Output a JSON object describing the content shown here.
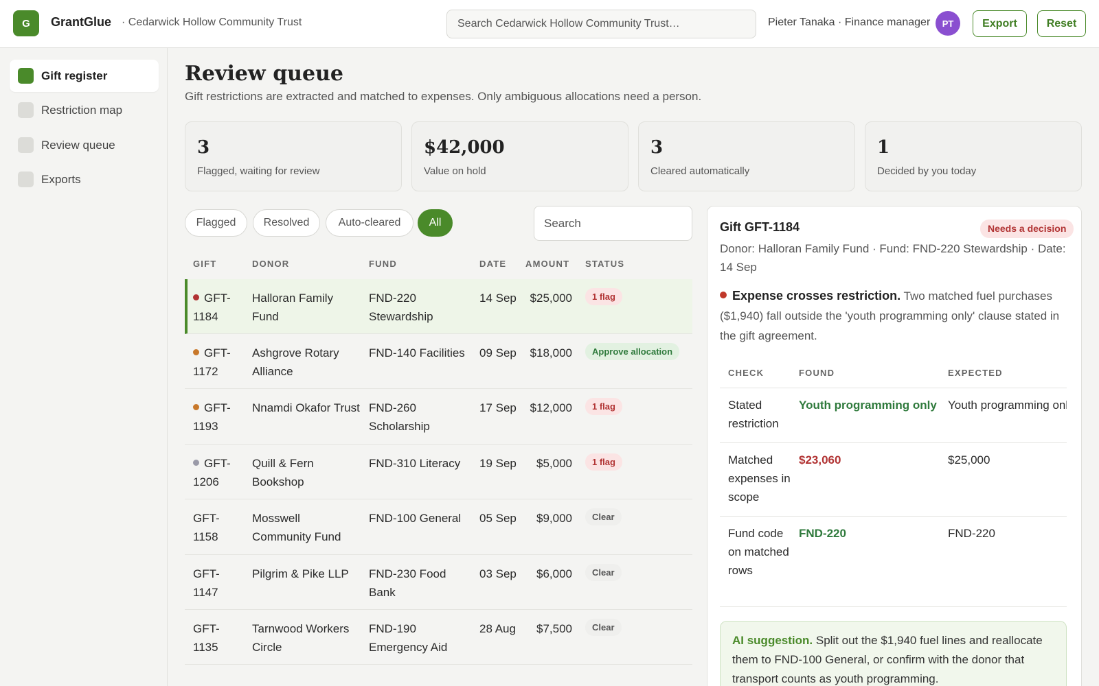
{
  "app": {
    "logo_letter": "G",
    "name": "GrantGlue",
    "org": "· Cedarwick Hollow Community Trust"
  },
  "topbar": {
    "search_placeholder": "Search Cedarwick Hollow Community Trust…",
    "user": "Pieter Tanaka · Finance manager",
    "avatar_initials": "PT",
    "export_label": "Export",
    "reset_label": "Reset"
  },
  "sidebar": {
    "items": [
      {
        "label": "Gift register",
        "active": true
      },
      {
        "label": "Restriction map",
        "active": false
      },
      {
        "label": "Review queue",
        "active": false
      },
      {
        "label": "Exports",
        "active": false
      }
    ]
  },
  "main": {
    "title": "Review queue",
    "subtitle": "Gift restrictions are extracted and matched to expenses. Only ambiguous allocations need a person.",
    "stats": [
      {
        "value": "3",
        "label": "Flagged, waiting for review"
      },
      {
        "value": "$42,000",
        "label": "Value on hold"
      },
      {
        "value": "3",
        "label": "Cleared automatically"
      },
      {
        "value": "1",
        "label": "Decided by you today"
      }
    ],
    "filters": [
      "Flagged",
      "Resolved",
      "Auto-cleared",
      "All"
    ],
    "active_filter": "All",
    "list_search_placeholder": "Search"
  },
  "table": {
    "headers": {
      "gift": "GIFT",
      "donor": "DONOR",
      "fund": "FUND",
      "date": "DATE",
      "amount": "AMOUNT",
      "status": "STATUS"
    },
    "rows": [
      {
        "gift": "GFT-1184",
        "donor": "Halloran Family Fund",
        "fund": "FND-220 Stewardship",
        "date": "14 Sep",
        "amount": "$25,000",
        "status": "1 flag",
        "status_type": "flag",
        "dot": "#b13333"
      },
      {
        "gift": "GFT-1172",
        "donor": "Ashgrove Rotary Alliance",
        "fund": "FND-140 Facilities",
        "date": "09 Sep",
        "amount": "$18,000",
        "status": "Approve allocation",
        "status_type": "approve",
        "dot": "#c8782a"
      },
      {
        "gift": "GFT-1193",
        "donor": "Nnamdi Okafor Trust",
        "fund": "FND-260 Scholarship",
        "date": "17 Sep",
        "amount": "$12,000",
        "status": "1 flag",
        "status_type": "flag",
        "dot": "#c8782a"
      },
      {
        "gift": "GFT-1206",
        "donor": "Quill & Fern Bookshop",
        "fund": "FND-310 Literacy",
        "date": "19 Sep",
        "amount": "$5,000",
        "status": "1 flag",
        "status_type": "flag",
        "dot": "#9a9aa8"
      },
      {
        "gift": "GFT-1158",
        "donor": "Mosswell Community Fund",
        "fund": "FND-100 General",
        "date": "05 Sep",
        "amount": "$9,000",
        "status": "Clear",
        "status_type": "clear",
        "dot": ""
      },
      {
        "gift": "GFT-1147",
        "donor": "Pilgrim & Pike LLP",
        "fund": "FND-230 Food Bank",
        "date": "03 Sep",
        "amount": "$6,000",
        "status": "Clear",
        "status_type": "clear",
        "dot": ""
      },
      {
        "gift": "GFT-1135",
        "donor": "Tarnwood Workers Circle",
        "fund": "FND-190 Emergency Aid",
        "date": "28 Aug",
        "amount": "$7,500",
        "status": "Clear",
        "status_type": "clear",
        "dot": ""
      }
    ]
  },
  "detail": {
    "title": "Gift GFT-1184",
    "badge": "Needs a decision",
    "meta": "Donor: Halloran Family Fund · Fund: FND-220 Stewardship · Date: 14 Sep",
    "issue_head": "Expense crosses restriction.",
    "issue_text": "Two matched fuel purchases ($1,940) fall outside the 'youth programming only' clause stated in the gift agreement.",
    "checks_headers": {
      "check": "CHECK",
      "found": "FOUND",
      "expected": "EXPECTED"
    },
    "checks": [
      {
        "check": "Stated restriction",
        "found": "Youth programming only",
        "found_type": "green",
        "expected": "Youth programming only"
      },
      {
        "check": "Matched expenses in scope",
        "found": "$23,060",
        "found_type": "red",
        "expected": "$25,000"
      },
      {
        "check": "Fund code on matched rows",
        "found": "FND-220",
        "found_type": "green",
        "expected": "FND-220"
      }
    ],
    "ai_head": "AI suggestion.",
    "ai_text": "Split out the $1,940 fuel lines and reallocate them to FND-100 General, or confirm with the donor that transport counts as youth programming."
  }
}
